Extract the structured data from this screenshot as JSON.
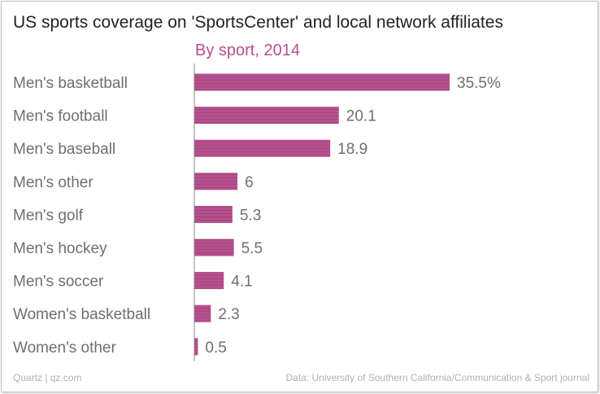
{
  "title": "US sports coverage on 'SportsCenter' and local network affiliates",
  "subtitle": "By sport, 2014",
  "colors": {
    "bar": "#b5508e",
    "bar_stripe": "#a8457f",
    "subtitle": "#b5508e",
    "axis": "#8a8a8a"
  },
  "chart_data": {
    "type": "bar",
    "orientation": "horizontal",
    "title": "US sports coverage on 'SportsCenter' and local network affiliates",
    "subtitle": "By sport, 2014",
    "unit": "%",
    "categories": [
      "Men's basketball",
      "Men's football",
      "Men's baseball",
      "Men's other",
      "Men's golf",
      "Men's hockey",
      "Men's soccer",
      "Women's basketball",
      "Women's other"
    ],
    "values": [
      35.5,
      20.1,
      18.9,
      6,
      5.3,
      5.5,
      4.1,
      2.3,
      0.5
    ],
    "value_labels": [
      "35.5%",
      "20.1",
      "18.9",
      "6",
      "5.3",
      "5.5",
      "4.1",
      "2.3",
      "0.5"
    ],
    "xlim": [
      0,
      35.5
    ]
  },
  "footer": {
    "source_left": "Quartz | qz.com",
    "source_right": "Data: University of Southern California/Communication & Sport journal"
  }
}
